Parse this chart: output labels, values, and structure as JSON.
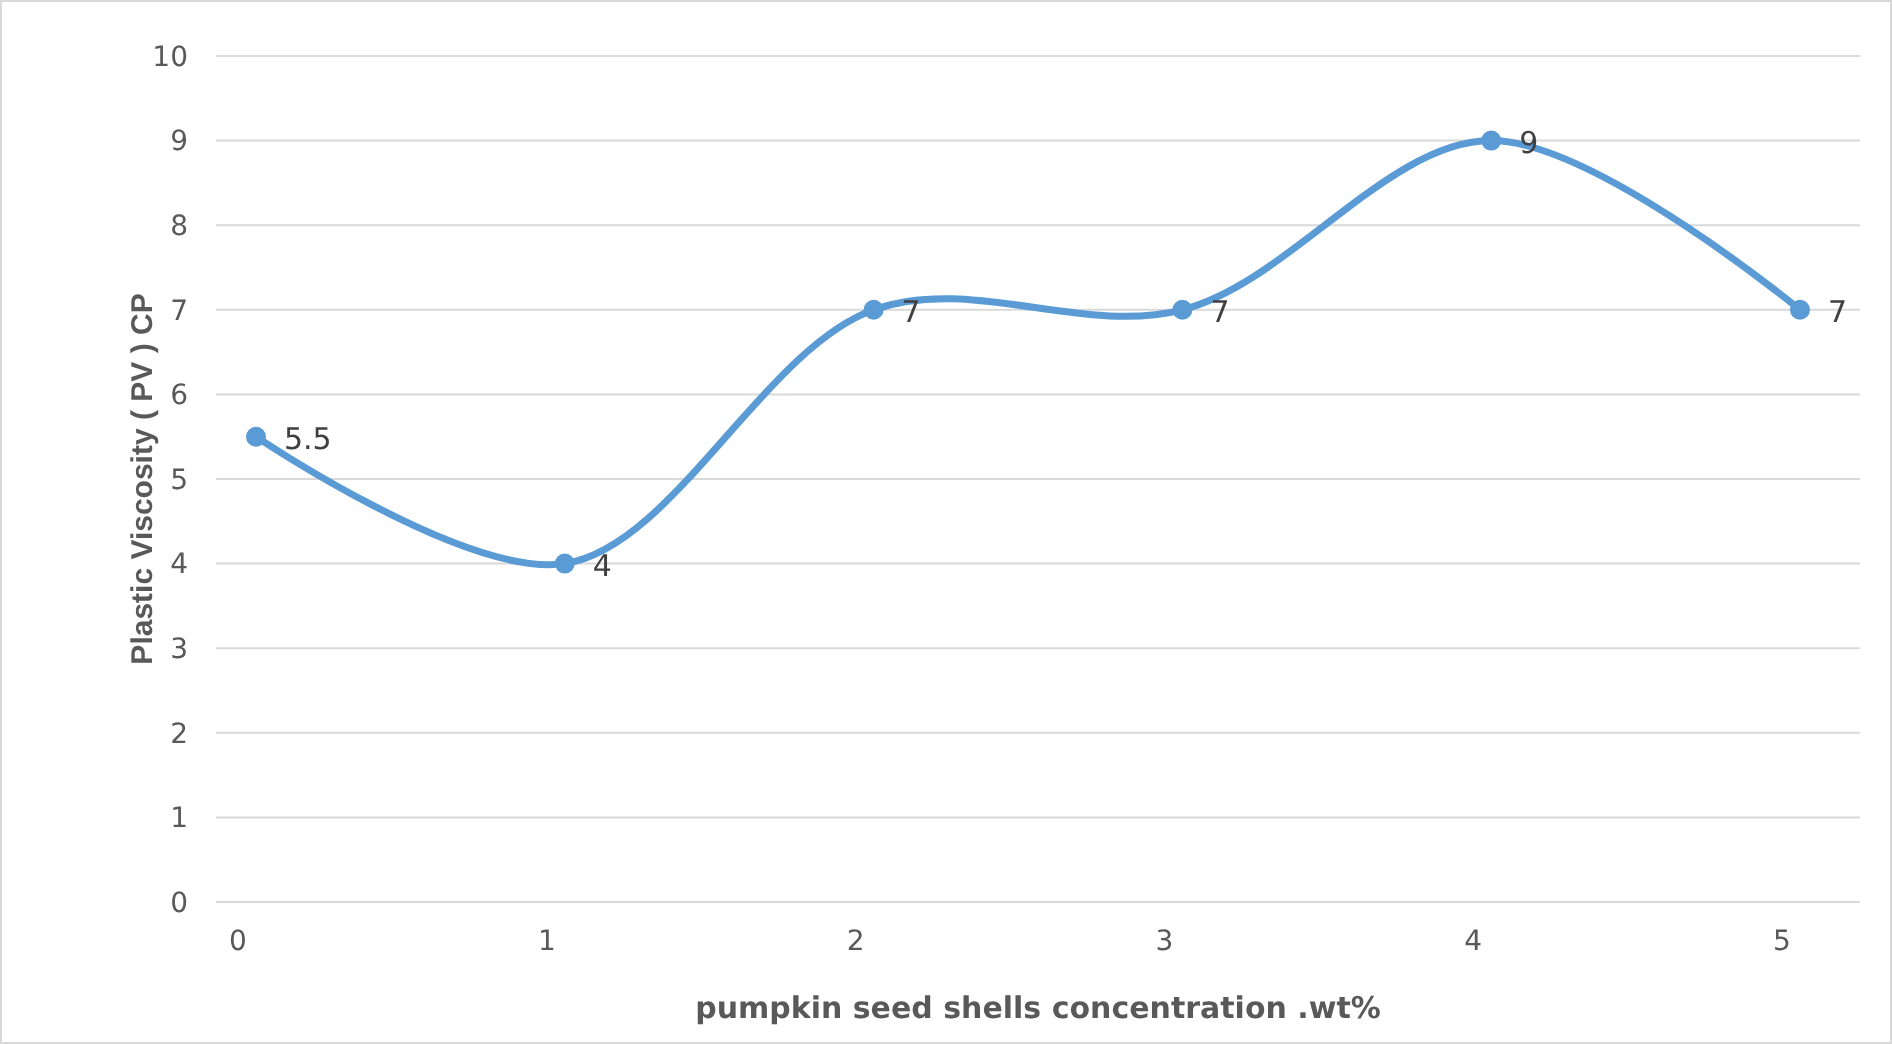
{
  "chart_data": {
    "type": "line",
    "xlabel": "pumpkin seed shells concentration .wt%",
    "ylabel": "Plastic Viscosity ( PV ) CP",
    "categories": [
      "0",
      "1",
      "2",
      "3",
      "4",
      "5"
    ],
    "series": [
      {
        "color": "#5b9bd5",
        "values": [
          5.5,
          4,
          7,
          7,
          9,
          7
        ]
      }
    ],
    "ylim": [
      0,
      10
    ],
    "yticks": [
      0,
      1,
      2,
      3,
      4,
      5,
      6,
      7,
      8,
      9,
      10
    ],
    "grid": "y",
    "marker": "circle",
    "data_labels": true
  }
}
